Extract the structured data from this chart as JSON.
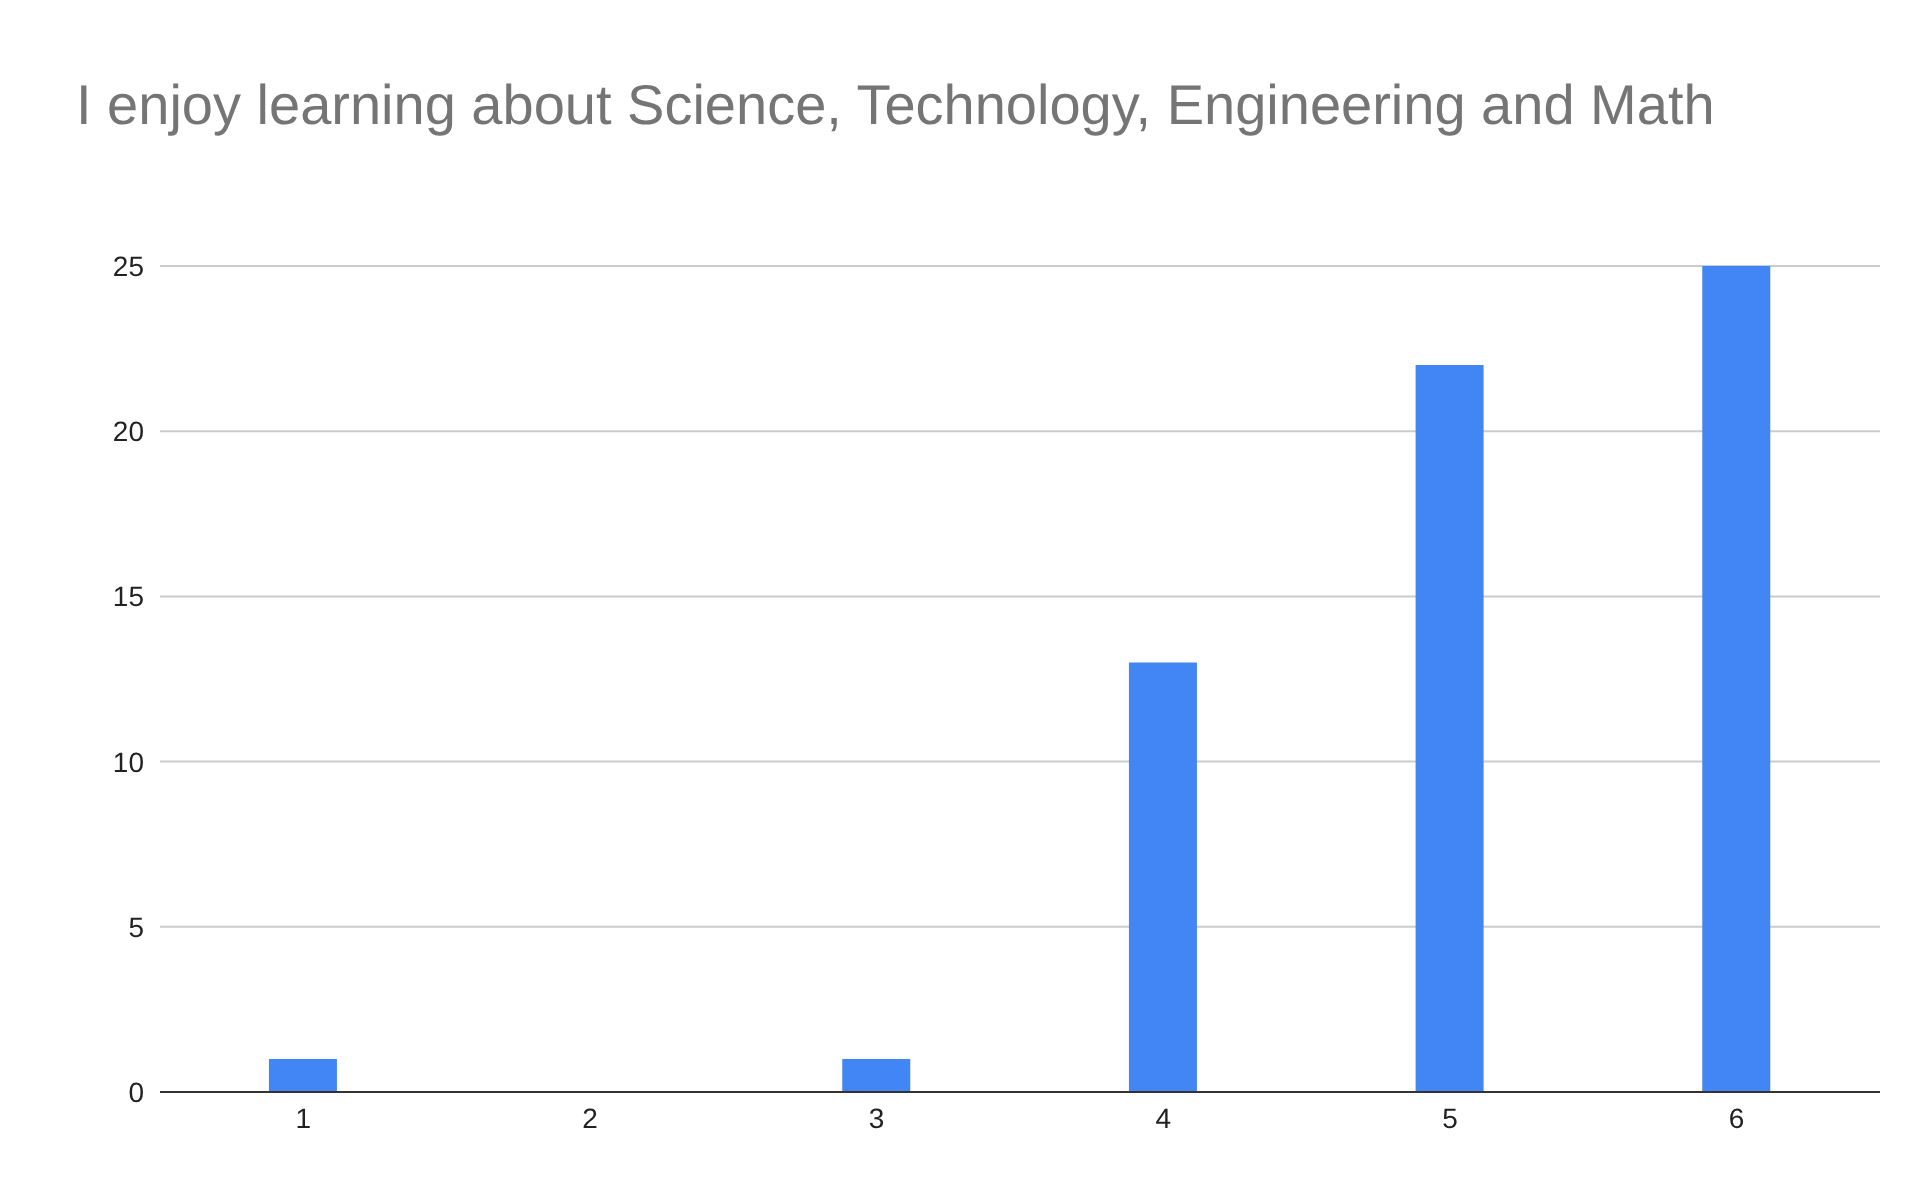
{
  "chart_data": {
    "type": "bar",
    "title": "I enjoy learning about Science, Technology, Engineering and Math",
    "categories": [
      "1",
      "2",
      "3",
      "4",
      "5",
      "6"
    ],
    "values": [
      1,
      0,
      1,
      13,
      22,
      25
    ],
    "color": "#4285f4",
    "ylim": [
      0,
      25
    ],
    "yticks": [
      0,
      5,
      10,
      15,
      20,
      25
    ],
    "grid": "y"
  }
}
